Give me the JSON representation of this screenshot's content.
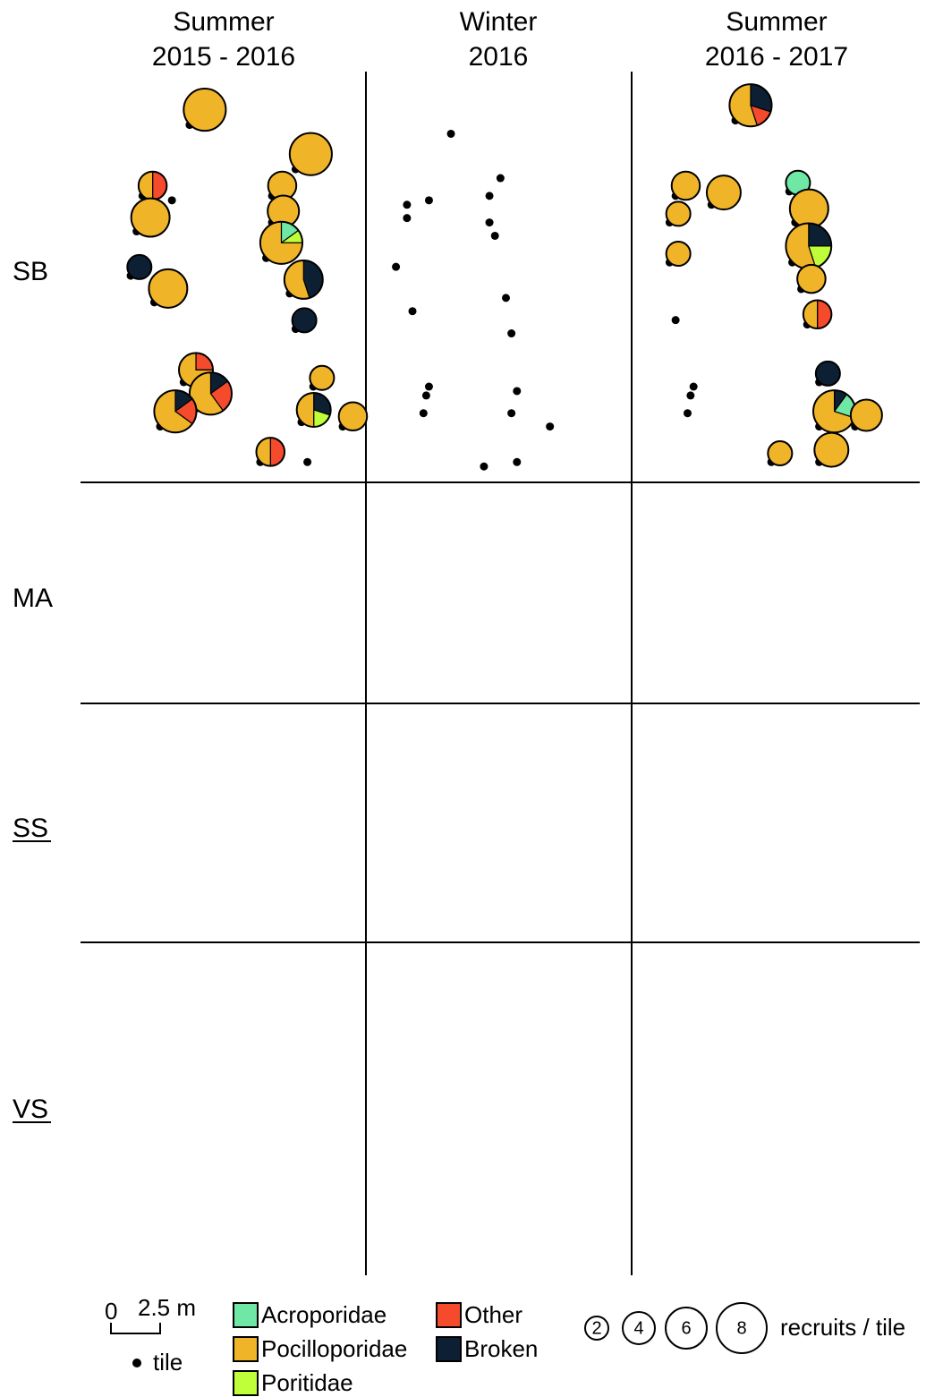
{
  "chart_data": {
    "type": "scatter",
    "columns": [
      {
        "title_line1": "Summer",
        "title_line2": "2015 - 2016"
      },
      {
        "title_line1": "Winter",
        "title_line2": "2016"
      },
      {
        "title_line1": "Summer",
        "title_line2": "2016 - 2017"
      }
    ],
    "rows": [
      {
        "label": "SB",
        "underline": false
      },
      {
        "label": "MA",
        "underline": false
      },
      {
        "label": "SS",
        "underline": true
      },
      {
        "label": "VS",
        "underline": true
      }
    ],
    "colors": {
      "Acroporidae": "#6ee8a4",
      "Pocilloporidae": "#f0b429",
      "Poritidae": "#bfff3a",
      "Other": "#f54a2c",
      "Broken": "#0d2033",
      "tile": "#000000"
    },
    "legend": {
      "scale_zero": "0",
      "scale_value": "2.5 m",
      "tile_label": "tile",
      "families": [
        "Acroporidae",
        "Pocilloporidae",
        "Poritidae",
        "Other",
        "Broken"
      ],
      "size_values": [
        "2",
        "4",
        "6",
        "8"
      ],
      "size_label": "recruits / tile"
    },
    "panels": [
      {
        "row": "SB",
        "col": 0,
        "tiles": [
          {
            "x": 1.7,
            "y": 0.5,
            "r": 8,
            "s": {
              "Pocilloporidae": 1
            }
          },
          {
            "x": 0.9,
            "y": 1.3,
            "r": 2,
            "s": {
              "Other": 0.5,
              "Pocilloporidae": 0.5
            }
          },
          {
            "x": 1.4,
            "y": 1.35,
            "r": 1
          },
          {
            "x": 0.8,
            "y": 1.7,
            "r": 6,
            "s": {
              "Pocilloporidae": 1
            }
          },
          {
            "x": 0.7,
            "y": 2.2,
            "r": 1,
            "s": {
              "Broken": 1
            }
          },
          {
            "x": 1.1,
            "y": 2.5,
            "r": 6,
            "s": {
              "Pocilloporidae": 1
            }
          },
          {
            "x": 3.5,
            "y": 1.0,
            "r": 8,
            "s": {
              "Pocilloporidae": 1
            }
          },
          {
            "x": 3.1,
            "y": 1.3,
            "r": 2,
            "s": {
              "Pocilloporidae": 1
            }
          },
          {
            "x": 3.1,
            "y": 1.6,
            "r": 3,
            "s": {
              "Pocilloporidae": 1
            }
          },
          {
            "x": 3.0,
            "y": 2.0,
            "r": 8,
            "s": {
              "Acroporidae": 0.15,
              "Poritidae": 0.1,
              "Pocilloporidae": 0.75
            }
          },
          {
            "x": 3.4,
            "y": 2.4,
            "r": 6,
            "s": {
              "Broken": 0.45,
              "Pocilloporidae": 0.55
            }
          },
          {
            "x": 3.5,
            "y": 2.8,
            "r": 1,
            "s": {
              "Broken": 1
            }
          },
          {
            "x": 1.6,
            "y": 3.4,
            "r": 4,
            "s": {
              "Other": 0.25,
              "Pocilloporidae": 0.75
            }
          },
          {
            "x": 1.8,
            "y": 3.7,
            "r": 8,
            "s": {
              "Broken": 0.15,
              "Other": 0.25,
              "Pocilloporidae": 0.6
            }
          },
          {
            "x": 1.2,
            "y": 3.9,
            "r": 8,
            "s": {
              "Broken": 0.15,
              "Other": 0.2,
              "Pocilloporidae": 0.65
            }
          },
          {
            "x": 3.8,
            "y": 3.45,
            "r": 1,
            "s": {
              "Pocilloporidae": 1
            }
          },
          {
            "x": 3.6,
            "y": 3.85,
            "r": 4,
            "s": {
              "Broken": 0.3,
              "Poritidae": 0.2,
              "Pocilloporidae": 0.5
            }
          },
          {
            "x": 4.3,
            "y": 3.9,
            "r": 2,
            "s": {
              "Pocilloporidae": 1
            }
          },
          {
            "x": 2.9,
            "y": 4.3,
            "r": 2,
            "s": {
              "Other": 0.5,
              "Pocilloporidae": 0.5
            }
          },
          {
            "x": 3.7,
            "y": 4.3,
            "r": 0
          }
        ]
      },
      {
        "row": "SB",
        "col": 1,
        "tiles": [
          {
            "x": 1.4,
            "y": 0.6,
            "r": 0
          },
          {
            "x": 0.6,
            "y": 1.4,
            "r": 0
          },
          {
            "x": 0.6,
            "y": 1.55,
            "r": 0
          },
          {
            "x": 1.0,
            "y": 1.35,
            "r": 0
          },
          {
            "x": 2.3,
            "y": 1.1,
            "r": 0
          },
          {
            "x": 2.1,
            "y": 1.3,
            "r": 0
          },
          {
            "x": 2.1,
            "y": 1.6,
            "r": 0
          },
          {
            "x": 2.2,
            "y": 1.75,
            "r": 0
          },
          {
            "x": 0.4,
            "y": 2.1,
            "r": 0
          },
          {
            "x": 0.7,
            "y": 2.6,
            "r": 0
          },
          {
            "x": 2.4,
            "y": 2.45,
            "r": 0
          },
          {
            "x": 2.5,
            "y": 2.85,
            "r": 0
          },
          {
            "x": 1.0,
            "y": 3.45,
            "r": 0
          },
          {
            "x": 0.95,
            "y": 3.55,
            "r": 0
          },
          {
            "x": 0.9,
            "y": 3.75,
            "r": 0
          },
          {
            "x": 2.6,
            "y": 3.5,
            "r": 0
          },
          {
            "x": 2.5,
            "y": 3.75,
            "r": 0
          },
          {
            "x": 3.2,
            "y": 3.9,
            "r": 0
          },
          {
            "x": 2.0,
            "y": 4.35,
            "r": 0
          },
          {
            "x": 2.6,
            "y": 4.3,
            "r": 0
          }
        ]
      },
      {
        "row": "SB",
        "col": 2,
        "tiles": [
          {
            "x": 1.6,
            "y": 0.45,
            "r": 8,
            "s": {
              "Broken": 0.3,
              "Other": 0.15,
              "Pocilloporidae": 0.55
            }
          },
          {
            "x": 0.6,
            "y": 1.3,
            "r": 2,
            "s": {
              "Pocilloporidae": 1
            }
          },
          {
            "x": 0.5,
            "y": 1.6,
            "r": 1,
            "s": {
              "Pocilloporidae": 1
            }
          },
          {
            "x": 1.2,
            "y": 1.4,
            "r": 4,
            "s": {
              "Pocilloporidae": 1
            }
          },
          {
            "x": 0.5,
            "y": 2.05,
            "r": 1,
            "s": {
              "Pocilloporidae": 1
            }
          },
          {
            "x": 2.5,
            "y": 1.25,
            "r": 1,
            "s": {
              "Acroporidae": 1
            }
          },
          {
            "x": 2.6,
            "y": 1.6,
            "r": 6,
            "s": {
              "Pocilloporidae": 1
            }
          },
          {
            "x": 2.55,
            "y": 2.05,
            "r": 10,
            "s": {
              "Broken": 0.25,
              "Poritidae": 0.2,
              "Pocilloporidae": 0.55
            }
          },
          {
            "x": 2.7,
            "y": 2.35,
            "r": 2,
            "s": {
              "Pocilloporidae": 1
            }
          },
          {
            "x": 2.8,
            "y": 2.75,
            "r": 2,
            "s": {
              "Other": 0.5,
              "Pocilloporidae": 0.5
            }
          },
          {
            "x": 0.6,
            "y": 2.7,
            "r": 0
          },
          {
            "x": 3.0,
            "y": 3.4,
            "r": 1,
            "s": {
              "Broken": 1
            }
          },
          {
            "x": 0.9,
            "y": 3.45,
            "r": 0
          },
          {
            "x": 0.85,
            "y": 3.55,
            "r": 0
          },
          {
            "x": 0.8,
            "y": 3.75,
            "r": 0
          },
          {
            "x": 3.0,
            "y": 3.9,
            "r": 8,
            "s": {
              "Broken": 0.1,
              "Acroporidae": 0.2,
              "Pocilloporidae": 0.7
            }
          },
          {
            "x": 3.6,
            "y": 3.9,
            "r": 3,
            "s": {
              "Pocilloporidae": 1
            }
          },
          {
            "x": 2.2,
            "y": 4.3,
            "r": 1,
            "s": {
              "Pocilloporidae": 1
            }
          },
          {
            "x": 3.0,
            "y": 4.3,
            "r": 4,
            "s": {
              "Pocilloporidae": 1
            }
          }
        ]
      }
    ]
  }
}
